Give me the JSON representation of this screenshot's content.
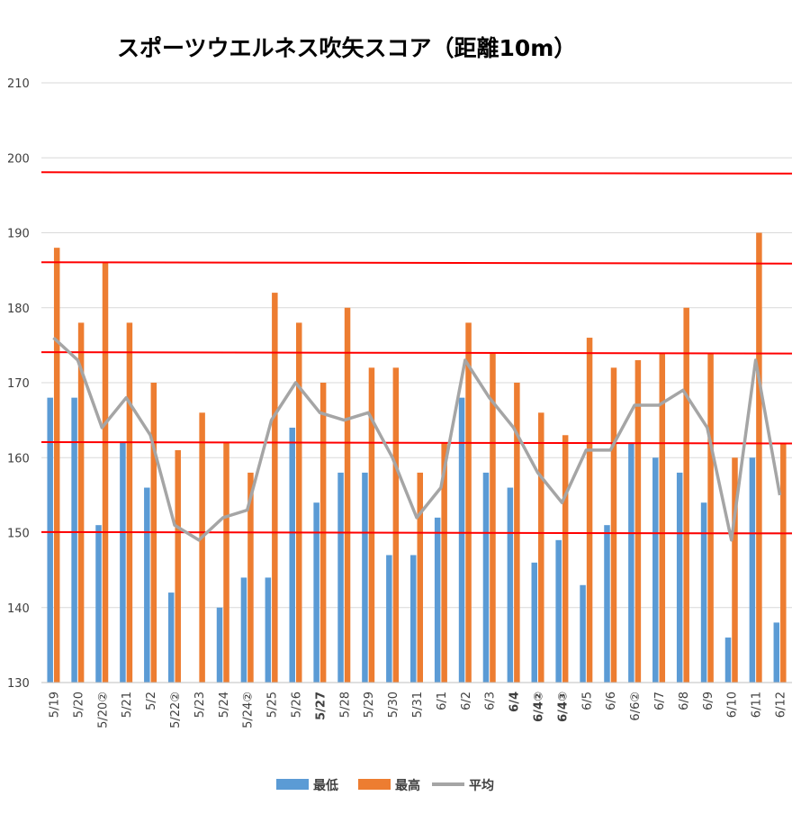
{
  "chart_data": {
    "type": "bar",
    "title": "スポーツウエルネス吹矢スコア（距離10m）",
    "xlabel": "",
    "ylabel": "",
    "ylim": [
      130,
      210
    ],
    "yticks": [
      "130",
      "140",
      "150",
      "160",
      "170",
      "180",
      "190",
      "200",
      "210"
    ],
    "grid": true,
    "legend": "bottom",
    "categories": [
      "5/19",
      "5/20",
      "5/20②",
      "5/21",
      "5/2",
      "5/22②",
      "5/23",
      "5/24",
      "5/24②",
      "5/25",
      "5/26",
      "5/27",
      "5/28",
      "5/29",
      "5/30",
      "5/31",
      "6/1",
      "6/2",
      "6/3",
      "6/4",
      "6/4②",
      "6/4③",
      "6/5",
      "6/6",
      "6/6②",
      "6/7",
      "6/8",
      "6/9",
      "6/10",
      "6/11",
      "6/12"
    ],
    "bold_categories": [
      "5/27",
      "6/4",
      "6/4②",
      "6/4③"
    ],
    "series": [
      {
        "name": "最低",
        "kind": "bar",
        "color": "#5b9bd5",
        "values": [
          168,
          168,
          151,
          162,
          156,
          142,
          null,
          140,
          144,
          144,
          164,
          154,
          158,
          158,
          147,
          147,
          152,
          168,
          158,
          156,
          146,
          149,
          143,
          151,
          162,
          160,
          158,
          154,
          136,
          160,
          138
        ]
      },
      {
        "name": "最高",
        "kind": "bar",
        "color": "#ed7d31",
        "values": [
          188,
          178,
          186,
          178,
          170,
          161,
          166,
          162,
          158,
          182,
          178,
          170,
          180,
          172,
          172,
          158,
          162,
          178,
          174,
          170,
          166,
          163,
          176,
          172,
          173,
          174,
          180,
          174,
          160,
          190,
          162
        ]
      },
      {
        "name": "平均",
        "kind": "line",
        "color": "#a5a5a5",
        "values": [
          176,
          173,
          164,
          168,
          163,
          151,
          149,
          152,
          153,
          165,
          170,
          166,
          165,
          166,
          160,
          152,
          156,
          173,
          168,
          164,
          158,
          154,
          161,
          161,
          167,
          167,
          169,
          164,
          149,
          173,
          155
        ]
      }
    ],
    "reference_lines": {
      "color": "#ff0000",
      "values": [
        150,
        162,
        174,
        186,
        198
      ]
    }
  }
}
